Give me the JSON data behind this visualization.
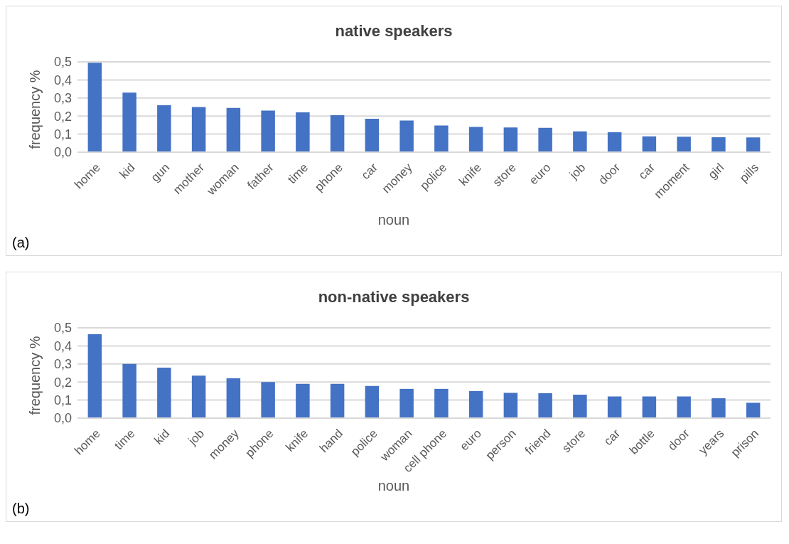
{
  "chart_data": [
    {
      "type": "bar",
      "title": "native speakers",
      "xlabel": "noun",
      "ylabel": "frequency %",
      "annotations": [
        "(a)"
      ],
      "categories": [
        "home",
        "kid",
        "gun",
        "mother",
        "woman",
        "father",
        "time",
        "phone",
        "car",
        "money",
        "police",
        "knife",
        "store",
        "euro",
        "job",
        "door",
        "car",
        "moment",
        "girl",
        "pills"
      ],
      "values": [
        0.495,
        0.33,
        0.26,
        0.25,
        0.245,
        0.23,
        0.22,
        0.205,
        0.185,
        0.175,
        0.148,
        0.14,
        0.137,
        0.135,
        0.115,
        0.11,
        0.088,
        0.086,
        0.083,
        0.082
      ],
      "color": "#4472c4",
      "ylim": [
        0,
        0.5
      ],
      "yticks": [
        {
          "value": 0,
          "label": "0,0"
        },
        {
          "value": 0.1,
          "label": "0,1"
        },
        {
          "value": 0.2,
          "label": "0,2"
        },
        {
          "value": 0.3,
          "label": "0,3"
        },
        {
          "value": 0.4,
          "label": "0,4"
        },
        {
          "value": 0.5,
          "label": "0,5"
        }
      ],
      "grid": "y"
    },
    {
      "type": "bar",
      "title": "non-native speakers",
      "xlabel": "noun",
      "ylabel": "frequency %",
      "annotations": [
        "(b)"
      ],
      "categories": [
        "home",
        "time",
        "kid",
        "job",
        "money",
        "phone",
        "knife",
        "hand",
        "police",
        "woman",
        "cell phone",
        "euro",
        "person",
        "friend",
        "store",
        "car",
        "bottle",
        "door",
        "years",
        "prison"
      ],
      "values": [
        0.465,
        0.3,
        0.28,
        0.235,
        0.22,
        0.2,
        0.19,
        0.19,
        0.178,
        0.162,
        0.162,
        0.15,
        0.14,
        0.138,
        0.13,
        0.12,
        0.12,
        0.12,
        0.11,
        0.085
      ],
      "color": "#4472c4",
      "ylim": [
        0,
        0.5
      ],
      "yticks": [
        {
          "value": 0,
          "label": "0,0"
        },
        {
          "value": 0.1,
          "label": "0,1"
        },
        {
          "value": 0.2,
          "label": "0,2"
        },
        {
          "value": 0.3,
          "label": "0,3"
        },
        {
          "value": 0.4,
          "label": "0,4"
        },
        {
          "value": 0.5,
          "label": "0,5"
        }
      ],
      "grid": "y"
    }
  ]
}
